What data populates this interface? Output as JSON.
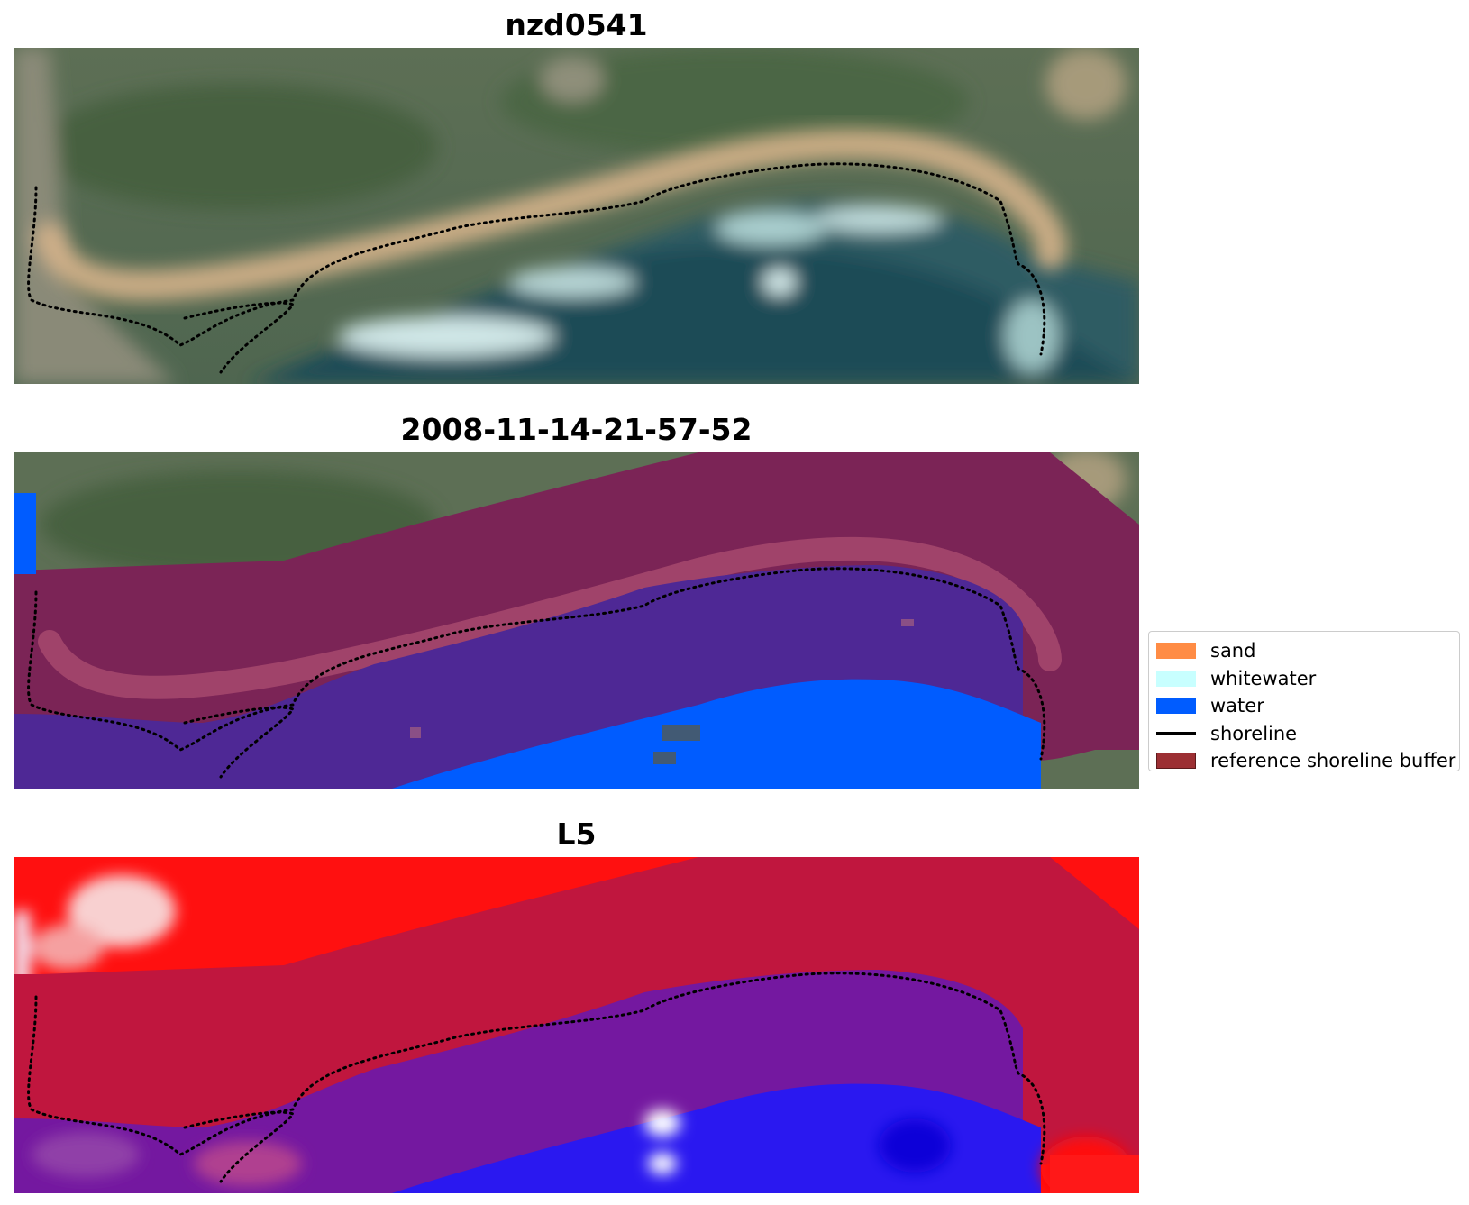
{
  "panels": [
    {
      "title": "nzd0541"
    },
    {
      "title": "2008-11-14-21-57-52"
    },
    {
      "title": "L5"
    }
  ],
  "legend": {
    "items": [
      {
        "label": "sand",
        "color": "#ff8c45",
        "kind": "patch"
      },
      {
        "label": "whitewater",
        "color": "#c8ffff",
        "kind": "patch"
      },
      {
        "label": "water",
        "color": "#005cff",
        "kind": "patch"
      },
      {
        "label": "shoreline",
        "color": "#000000",
        "kind": "line"
      },
      {
        "label": "reference shoreline buffer",
        "color": "#9c2f33",
        "kind": "patch"
      }
    ]
  }
}
